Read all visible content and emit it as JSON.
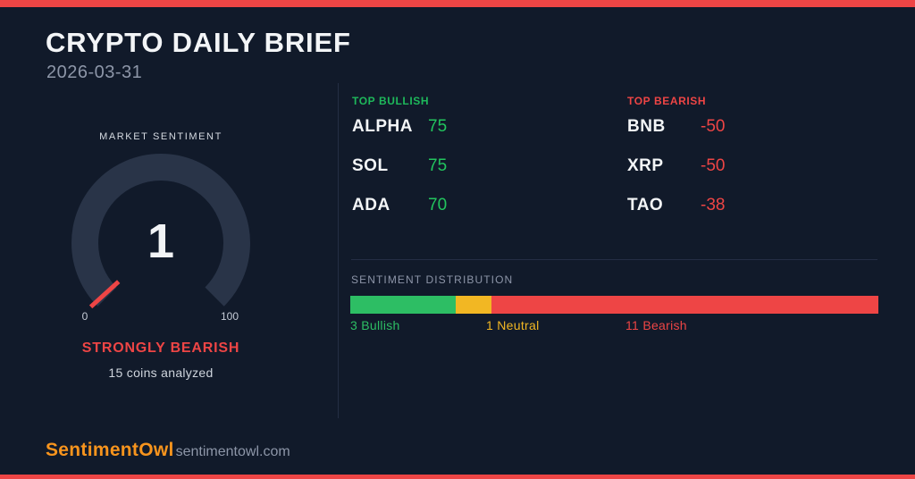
{
  "header": {
    "title": "CRYPTO DAILY BRIEF",
    "date": "2026-03-31"
  },
  "gauge": {
    "label": "MARKET SENTIMENT",
    "value": "1",
    "min": "0",
    "max": "100",
    "status": "STRONGLY BEARISH",
    "note": "15 coins analyzed"
  },
  "top_bullish": {
    "title": "TOP BULLISH",
    "items": [
      {
        "symbol": "ALPHA",
        "score": "75"
      },
      {
        "symbol": "SOL",
        "score": "75"
      },
      {
        "symbol": "ADA",
        "score": "70"
      }
    ]
  },
  "top_bearish": {
    "title": "TOP BEARISH",
    "items": [
      {
        "symbol": "BNB",
        "score": "-50"
      },
      {
        "symbol": "XRP",
        "score": "-50"
      },
      {
        "symbol": "TAO",
        "score": "-38"
      }
    ]
  },
  "distribution": {
    "title": "SENTIMENT DISTRIBUTION",
    "total": 15,
    "segments": [
      {
        "label": "3 Bullish",
        "count": 3,
        "color": "#2dbe64"
      },
      {
        "label": "1 Neutral",
        "count": 1,
        "color": "#f2b723"
      },
      {
        "label": "11 Bearish",
        "count": 11,
        "color": "#ee4545"
      }
    ]
  },
  "footer": {
    "brand": "SentimentOwl",
    "site": "sentimentowl.com"
  },
  "colors": {
    "background": "#111a2a",
    "accent_red": "#ee4545",
    "accent_green": "#22c55e",
    "accent_yellow": "#f2b723",
    "brand_orange": "#f7941d",
    "gauge_ring": "#293448"
  },
  "chart_data": [
    {
      "type": "gauge",
      "title": "MARKET SENTIMENT",
      "value": 1,
      "range": [
        0,
        100
      ],
      "status": "STRONGLY BEARISH",
      "annotation": "15 coins analyzed",
      "needle_color": "#ee4545",
      "sweep_degrees": 270
    },
    {
      "type": "bar",
      "layout": "stacked-horizontal",
      "title": "SENTIMENT DISTRIBUTION",
      "categories": [
        "Bullish",
        "Neutral",
        "Bearish"
      ],
      "values": [
        3,
        1,
        11
      ],
      "total": 15,
      "colors": [
        "#2dbe64",
        "#f2b723",
        "#ee4545"
      ],
      "labels": [
        "3 Bullish",
        "1 Neutral",
        "11 Bearish"
      ]
    },
    {
      "type": "table",
      "title": "TOP BULLISH",
      "columns": [
        "symbol",
        "score"
      ],
      "rows": [
        [
          "ALPHA",
          75
        ],
        [
          "SOL",
          75
        ],
        [
          "ADA",
          70
        ]
      ]
    },
    {
      "type": "table",
      "title": "TOP BEARISH",
      "columns": [
        "symbol",
        "score"
      ],
      "rows": [
        [
          "BNB",
          -50
        ],
        [
          "XRP",
          -50
        ],
        [
          "TAO",
          -38
        ]
      ]
    }
  ]
}
